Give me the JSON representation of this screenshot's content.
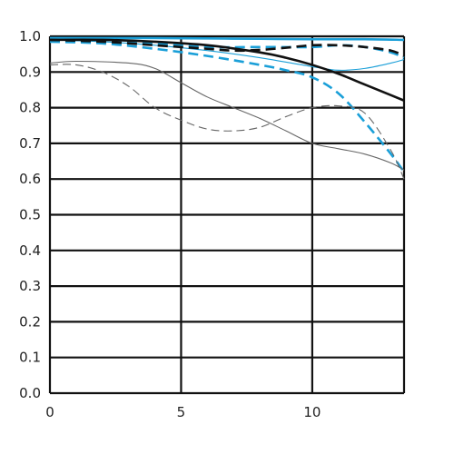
{
  "chart_data": {
    "type": "line",
    "title": "",
    "xlabel": "",
    "ylabel": "",
    "xlim": [
      0,
      13.5
    ],
    "ylim": [
      0,
      1
    ],
    "x_ticks": [
      "0",
      "5",
      "10"
    ],
    "x_tick_values": [
      0,
      5,
      10
    ],
    "y_ticks": [
      "0.0",
      "0.1",
      "0.2",
      "0.3",
      "0.4",
      "0.5",
      "0.6",
      "0.7",
      "0.8",
      "0.9",
      "1.0"
    ],
    "y_tick_values": [
      0,
      0.1,
      0.2,
      0.3,
      0.4,
      0.5,
      0.6,
      0.7,
      0.8,
      0.9,
      1.0
    ],
    "grid": true,
    "legend": "none",
    "series": [
      {
        "color": "#1a9fd8",
        "style": "solid",
        "weight": "thick",
        "x": [
          0,
          2,
          4,
          6,
          8,
          10,
          12,
          13.5
        ],
        "y": [
          0.995,
          0.995,
          0.995,
          0.994,
          0.993,
          0.992,
          0.992,
          0.99
        ]
      },
      {
        "color": "#1a9fd8",
        "style": "solid",
        "weight": "thin",
        "x": [
          0,
          2,
          4,
          6,
          8,
          10,
          11,
          12,
          13,
          13.5
        ],
        "y": [
          0.99,
          0.985,
          0.975,
          0.96,
          0.94,
          0.915,
          0.905,
          0.91,
          0.925,
          0.935
        ]
      },
      {
        "color": "#1a9fd8",
        "style": "dashed",
        "weight": "thick",
        "x": [
          0,
          2,
          4,
          6,
          8,
          10,
          11,
          12,
          13,
          13.5
        ],
        "y": [
          0.99,
          0.99,
          0.98,
          0.97,
          0.97,
          0.97,
          0.975,
          0.97,
          0.955,
          0.94
        ]
      },
      {
        "color": "#1a9fd8",
        "style": "dashed",
        "weight": "thick",
        "x": [
          0,
          2,
          4,
          6,
          8,
          9,
          10,
          11,
          12,
          13,
          13.5
        ],
        "y": [
          0.985,
          0.98,
          0.965,
          0.945,
          0.92,
          0.905,
          0.885,
          0.84,
          0.76,
          0.67,
          0.62
        ]
      },
      {
        "color": "#111111",
        "style": "solid",
        "weight": "thick",
        "x": [
          0,
          2,
          4,
          6,
          8,
          9,
          10,
          11,
          12,
          13,
          13.5
        ],
        "y": [
          0.99,
          0.99,
          0.985,
          0.975,
          0.955,
          0.94,
          0.92,
          0.895,
          0.865,
          0.835,
          0.82
        ]
      },
      {
        "color": "#111111",
        "style": "dashed",
        "weight": "thick",
        "x": [
          0,
          2,
          4,
          6,
          7,
          8,
          9,
          10,
          11,
          12,
          13,
          13.5
        ],
        "y": [
          0.99,
          0.985,
          0.975,
          0.965,
          0.96,
          0.962,
          0.968,
          0.975,
          0.975,
          0.97,
          0.96,
          0.945
        ]
      },
      {
        "color": "#666666",
        "style": "solid",
        "weight": "thin",
        "x": [
          0,
          1,
          3,
          4,
          5,
          6,
          7,
          8,
          9,
          10,
          11,
          12,
          13,
          13.5
        ],
        "y": [
          0.925,
          0.93,
          0.925,
          0.91,
          0.87,
          0.83,
          0.8,
          0.77,
          0.735,
          0.7,
          0.685,
          0.67,
          0.645,
          0.625
        ]
      },
      {
        "color": "#666666",
        "style": "dashed",
        "weight": "thin",
        "x": [
          0,
          1,
          2,
          3,
          4,
          5,
          6,
          7,
          8,
          9,
          10,
          11,
          12,
          13,
          13.5
        ],
        "y": [
          0.92,
          0.92,
          0.9,
          0.86,
          0.8,
          0.765,
          0.74,
          0.735,
          0.745,
          0.775,
          0.8,
          0.805,
          0.785,
          0.68,
          0.6
        ]
      }
    ]
  }
}
